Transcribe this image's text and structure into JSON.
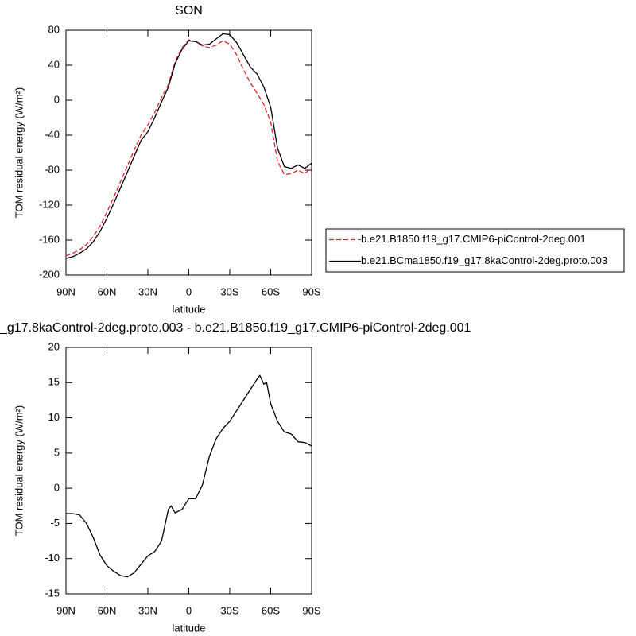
{
  "chart_data": [
    {
      "type": "line",
      "title": "SON",
      "xlabel": "latitude",
      "ylabel": "TOM residual energy (W/m²)",
      "xlim": [
        90,
        -90
      ],
      "xticks": [
        {
          "value": 90,
          "label": "90N"
        },
        {
          "value": 60,
          "label": "60N"
        },
        {
          "value": 30,
          "label": "30N"
        },
        0,
        {
          "value": -30,
          "label": "30S"
        },
        {
          "value": -60,
          "label": "60S"
        },
        {
          "value": -90,
          "label": "90S"
        }
      ],
      "ylim": [
        -200,
        80
      ],
      "yticks": [
        -200,
        -160,
        -120,
        -80,
        -40,
        0,
        40,
        80
      ],
      "legend": "outside-right",
      "x": [
        90,
        85,
        80,
        75,
        70,
        65,
        60,
        55,
        50,
        45,
        40,
        35,
        30,
        25,
        20,
        15,
        10,
        5,
        0,
        -5,
        -10,
        -15,
        -20,
        -25,
        -30,
        -35,
        -40,
        -45,
        -50,
        -55,
        -60,
        -65,
        -70,
        -75,
        -80,
        -85,
        -90
      ],
      "series": [
        {
          "name": "b.e21.B1850.f19_g17.CMIP6-piControl-2deg.001",
          "color": "#e8202a",
          "dash": true,
          "values": [
            -178,
            -175,
            -171,
            -165,
            -156,
            -144,
            -128,
            -111,
            -93,
            -75,
            -57,
            -40,
            -28,
            -14,
            3,
            18,
            44,
            60,
            69,
            67,
            62,
            60,
            63,
            68,
            64,
            52,
            35,
            20,
            8,
            -5,
            -25,
            -70,
            -85,
            -84,
            -80,
            -84,
            -77
          ]
        },
        {
          "name": "b.e21.BCma1850.f19_g17.8kaControl-2deg.proto.003",
          "color": "#000000",
          "dash": false,
          "values": [
            -181,
            -179,
            -175,
            -170,
            -162,
            -150,
            -135,
            -118,
            -100,
            -82,
            -64,
            -46,
            -36,
            -20,
            -2,
            15,
            42,
            58,
            68,
            67,
            63,
            64,
            70,
            76,
            75,
            66,
            52,
            38,
            30,
            15,
            -8,
            -55,
            -76,
            -78,
            -74,
            -78,
            -72
          ]
        }
      ]
    },
    {
      "type": "line",
      "title": "_g17.8kaControl-2deg.proto.003 - b.e21.B1850.f19_g17.CMIP6-piControl-2deg.001",
      "xlabel": "latitude",
      "ylabel": "TOM residual energy (W/m²)",
      "xlim": [
        90,
        -90
      ],
      "xticks": [
        {
          "value": 90,
          "label": "90N"
        },
        {
          "value": 60,
          "label": "60N"
        },
        {
          "value": 30,
          "label": "30N"
        },
        0,
        {
          "value": -30,
          "label": "30S"
        },
        {
          "value": -60,
          "label": "60S"
        },
        {
          "value": -90,
          "label": "90S"
        }
      ],
      "ylim": [
        -15,
        20
      ],
      "yticks": [
        -15,
        -10,
        -5,
        0,
        5,
        10,
        15,
        20
      ],
      "x": [
        90,
        85,
        80,
        75,
        70,
        65,
        60,
        55,
        50,
        45,
        40,
        35,
        30,
        25,
        20,
        15,
        13,
        10,
        5,
        0,
        -5,
        -10,
        -15,
        -20,
        -25,
        -30,
        -35,
        -40,
        -45,
        -50,
        -52,
        -55,
        -57,
        -60,
        -65,
        -70,
        -75,
        -80,
        -85,
        -90
      ],
      "series": [
        {
          "color": "#000000",
          "values": [
            -3.6,
            -3.6,
            -3.8,
            -5,
            -7,
            -9.5,
            -11,
            -11.8,
            -12.4,
            -12.6,
            -12,
            -10.8,
            -9.6,
            -9,
            -7.5,
            -3,
            -2.5,
            -3.5,
            -3,
            -1.5,
            -1.5,
            0.5,
            4.5,
            7,
            8.5,
            9.5,
            11,
            12.5,
            14,
            15.5,
            16,
            14.8,
            15,
            12,
            9.5,
            8,
            7.7,
            6.6,
            6.5,
            6
          ]
        }
      ]
    }
  ]
}
